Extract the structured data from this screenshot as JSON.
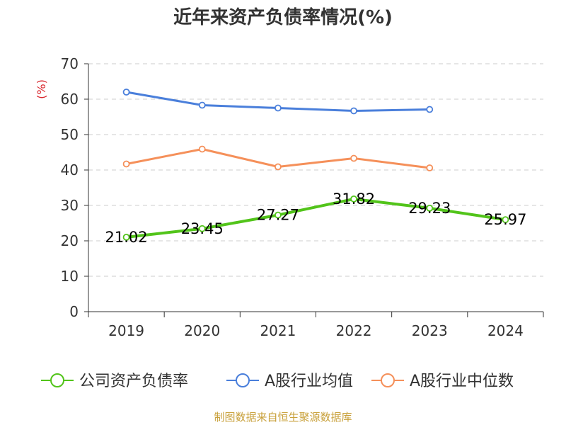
{
  "chart_data": {
    "type": "line",
    "title": "近年来资产负债率情况(%)",
    "ylabel": "(%)",
    "xlabel": "",
    "categories": [
      "2019",
      "2020",
      "2021",
      "2022",
      "2023",
      "2024"
    ],
    "ylim": [
      0,
      70
    ],
    "yticks": [
      0,
      10,
      20,
      30,
      40,
      50,
      60,
      70
    ],
    "grid": true,
    "legend_position": "bottom",
    "series": [
      {
        "name": "公司资产负债率",
        "color": "#52c41a",
        "values": [
          21.02,
          23.45,
          27.27,
          31.82,
          29.23,
          25.97
        ],
        "labels": [
          "21.02",
          "23.45",
          "27.27",
          "31.82",
          "29.23",
          "25.97"
        ]
      },
      {
        "name": "A股行业均值",
        "color": "#4a7fdb",
        "values": [
          62.0,
          58.3,
          57.5,
          56.7,
          57.1,
          null
        ]
      },
      {
        "name": "A股行业中位数",
        "color": "#f5905a",
        "values": [
          41.7,
          45.9,
          40.9,
          43.3,
          40.6,
          null
        ]
      }
    ],
    "source": "制图数据来自恒生聚源数据库"
  }
}
